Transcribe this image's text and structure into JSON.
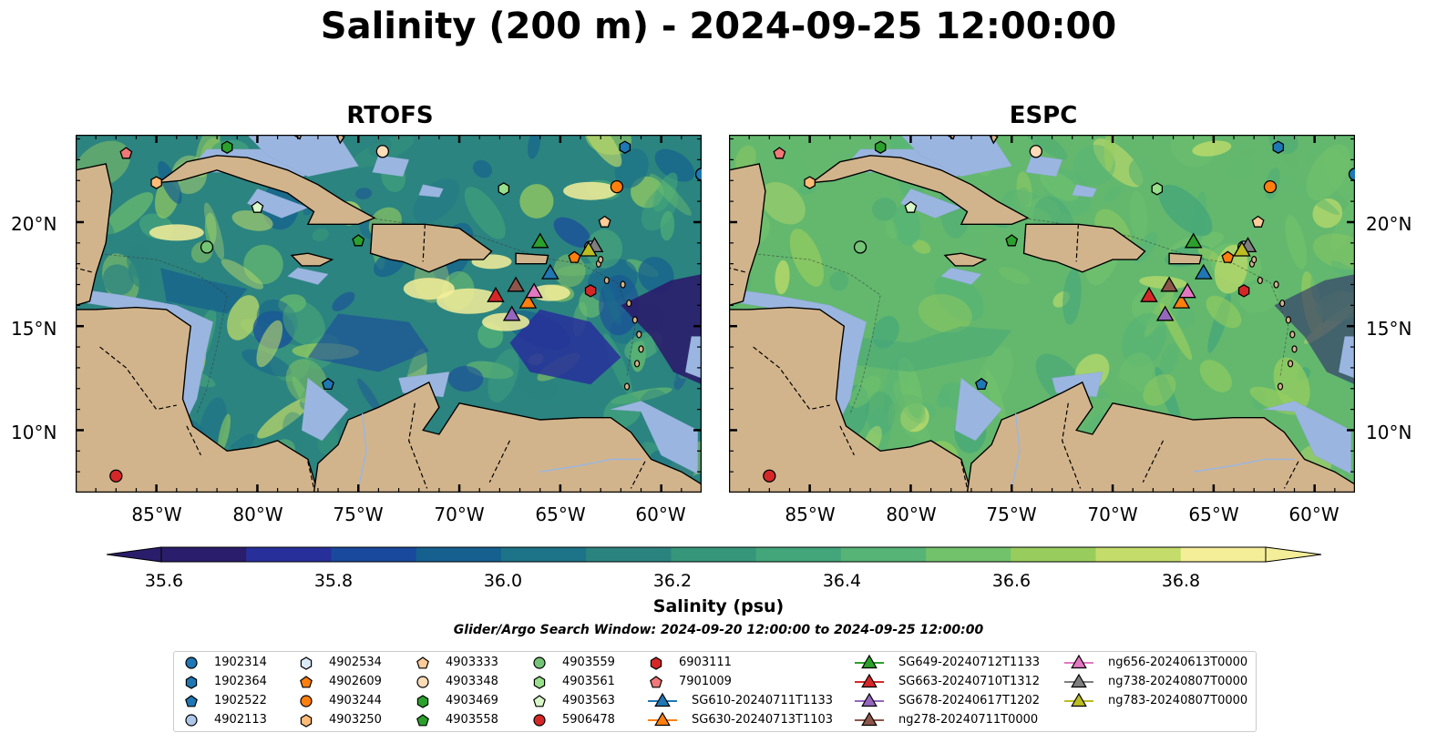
{
  "title": "Salinity (200 m) - 2024-09-25 12:00:00",
  "panels": [
    {
      "title": "RTOFS"
    },
    {
      "title": "ESPC"
    }
  ],
  "lat_ticks": [
    "20°N",
    "15°N",
    "10°N"
  ],
  "lon_ticks": [
    "85°W",
    "80°W",
    "75°W",
    "70°W",
    "65°W",
    "60°W"
  ],
  "colorbar": {
    "label": "Salinity (psu)",
    "ticks": [
      "35.6",
      "35.8",
      "36.0",
      "36.2",
      "36.4",
      "36.6",
      "36.8"
    ],
    "range": [
      35.6,
      36.9
    ],
    "colors": [
      "#2a1d6b",
      "#272f9a",
      "#19499c",
      "#15608f",
      "#1d7388",
      "#2b837f",
      "#369679",
      "#43a57a",
      "#56b476",
      "#72c26c",
      "#98cd5e",
      "#c4dd6a",
      "#f5ee99"
    ]
  },
  "search_window": "Glider/Argo Search Window: 2024-09-20 12:00:00 to 2024-09-25 12:00:00",
  "colors": {
    "land": "#d2b48c",
    "shelf": "#9ab6e0",
    "ocean_rtofs": "#2b8480",
    "ocean_espc": "#63b86e"
  },
  "legend": [
    {
      "label": "1902314",
      "marker": "circle",
      "color": "#1f77b4"
    },
    {
      "label": "1902364",
      "marker": "hexagon",
      "color": "#1f77b4"
    },
    {
      "label": "1902522",
      "marker": "pentagon",
      "color": "#1f77b4"
    },
    {
      "label": "4902113",
      "marker": "circle",
      "color": "#aec7e8"
    },
    {
      "label": "4902534",
      "marker": "hexagon",
      "color": "#dbeaf7"
    },
    {
      "label": "4902609",
      "marker": "pentagon",
      "color": "#ff7f0e"
    },
    {
      "label": "4903244",
      "marker": "circle",
      "color": "#ff7f0e"
    },
    {
      "label": "4903250",
      "marker": "hexagon",
      "color": "#ffbb78"
    },
    {
      "label": "4903333",
      "marker": "pentagon",
      "color": "#ffcc99"
    },
    {
      "label": "4903348",
      "marker": "circle",
      "color": "#ffdcb8"
    },
    {
      "label": "4903469",
      "marker": "hexagon",
      "color": "#2ca02c"
    },
    {
      "label": "4903558",
      "marker": "pentagon",
      "color": "#2ca02c"
    },
    {
      "label": "4903559",
      "marker": "circle",
      "color": "#74c476"
    },
    {
      "label": "4903561",
      "marker": "hexagon",
      "color": "#98df8a"
    },
    {
      "label": "4903563",
      "marker": "pentagon",
      "color": "#d9f7c8"
    },
    {
      "label": "5906478",
      "marker": "circle",
      "color": "#d62728"
    },
    {
      "label": "6903111",
      "marker": "hexagon",
      "color": "#d62728"
    },
    {
      "label": "7901009",
      "marker": "pentagon",
      "color": "#f07878"
    },
    {
      "label": "SG610-20240711T1133",
      "marker": "triangle-line",
      "color": "#1f77b4"
    },
    {
      "label": "SG630-20240713T1103",
      "marker": "triangle-line",
      "color": "#ff7f0e"
    },
    {
      "label": "SG649-20240712T1133",
      "marker": "triangle-line",
      "color": "#2ca02c"
    },
    {
      "label": "SG663-20240710T1312",
      "marker": "triangle-line",
      "color": "#d62728"
    },
    {
      "label": "SG678-20240617T1202",
      "marker": "triangle-line",
      "color": "#9467bd"
    },
    {
      "label": "ng278-20240711T0000",
      "marker": "triangle-line",
      "color": "#8c564b"
    },
    {
      "label": "ng656-20240613T0000",
      "marker": "triangle-line",
      "color": "#e377c2"
    },
    {
      "label": "ng738-20240807T0000",
      "marker": "triangle-line",
      "color": "#7f7f7f"
    },
    {
      "label": "ng783-20240807T0000",
      "marker": "triangle-line",
      "color": "#bcbd22"
    }
  ],
  "observations": [
    {
      "id": "1902314",
      "lon": -58.0,
      "lat": 22.3
    },
    {
      "id": "1902364",
      "lon": -61.8,
      "lat": 23.6
    },
    {
      "id": "1902522",
      "lon": -76.5,
      "lat": 12.2
    },
    {
      "id": "4902113",
      "lon": -63.5,
      "lat": 18.8
    },
    {
      "id": "4902534",
      "lon": -73.6,
      "lat": 24.9
    },
    {
      "id": "4902609",
      "lon": -64.3,
      "lat": 18.3
    },
    {
      "id": "4903244",
      "lon": -62.2,
      "lat": 21.7
    },
    {
      "id": "4903250",
      "lon": -85.0,
      "lat": 21.9
    },
    {
      "id": "4903333",
      "lon": -62.8,
      "lat": 20.0
    },
    {
      "id": "4903348",
      "lon": -73.8,
      "lat": 23.4
    },
    {
      "id": "4903469",
      "lon": -81.5,
      "lat": 23.6
    },
    {
      "id": "4903558",
      "lon": -75.0,
      "lat": 19.1
    },
    {
      "id": "4903559",
      "lon": -82.5,
      "lat": 18.8
    },
    {
      "id": "4903561",
      "lon": -67.8,
      "lat": 21.6
    },
    {
      "id": "4903563",
      "lon": -80.0,
      "lat": 20.7
    },
    {
      "id": "5906478",
      "lon": -87.0,
      "lat": 7.8
    },
    {
      "id": "6903111",
      "lon": -63.5,
      "lat": 16.7
    },
    {
      "id": "7901009",
      "lon": -86.5,
      "lat": 23.3
    },
    {
      "id": "SG610-20240711T1133",
      "lon": -65.5,
      "lat": 17.5
    },
    {
      "id": "SG630-20240713T1103",
      "lon": -66.6,
      "lat": 16.1
    },
    {
      "id": "SG649-20240712T1133",
      "lon": -66.0,
      "lat": 19.0
    },
    {
      "id": "SG663-20240710T1312",
      "lon": -68.2,
      "lat": 16.4
    },
    {
      "id": "SG678-20240617T1202",
      "lon": -67.4,
      "lat": 15.5
    },
    {
      "id": "ng278-20240711T0000",
      "lon": -67.2,
      "lat": 16.9
    },
    {
      "id": "ng656-20240613T0000",
      "lon": -66.3,
      "lat": 16.6
    },
    {
      "id": "ng738-20240807T0000",
      "lon": -63.3,
      "lat": 18.8
    },
    {
      "id": "ng783-20240807T0000",
      "lon": -63.6,
      "lat": 18.6
    }
  ]
}
